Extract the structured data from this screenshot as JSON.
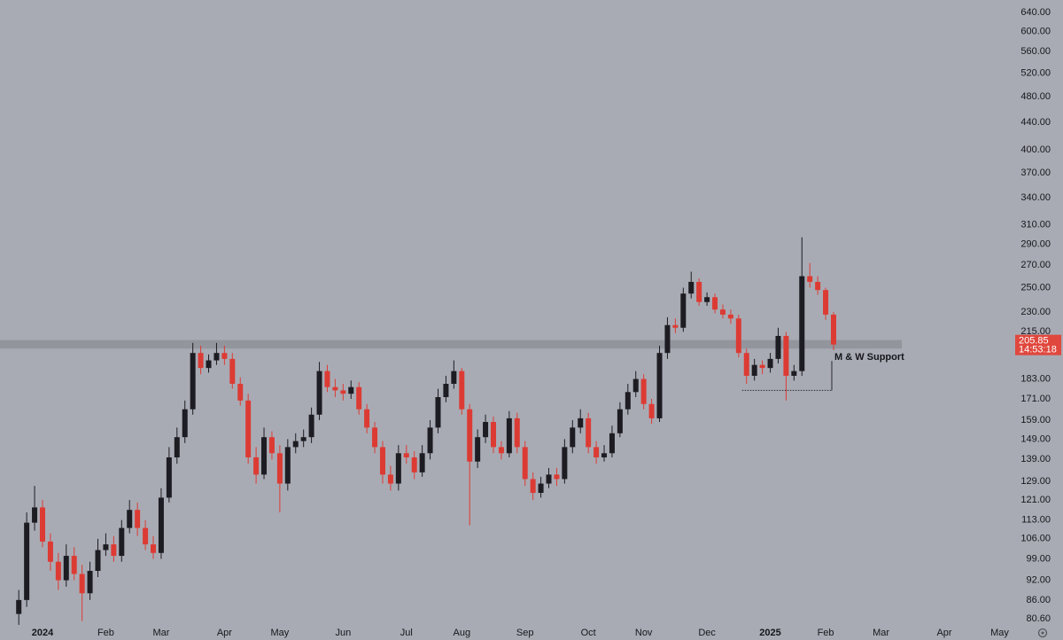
{
  "chart_data": {
    "type": "candlestick",
    "log_scale": true,
    "grid": false,
    "up_color": "#1c1c22",
    "down_color": "#dc3b34",
    "band_color": "#8f9199",
    "categories": [
      null,
      null,
      null,
      "2024",
      null,
      null,
      null,
      null,
      null,
      null,
      null,
      "Feb",
      null,
      null,
      null,
      null,
      null,
      null,
      "Mar",
      null,
      null,
      null,
      null,
      null,
      null,
      null,
      "Apr",
      null,
      null,
      null,
      null,
      null,
      null,
      "May",
      null,
      null,
      null,
      null,
      null,
      null,
      null,
      "Jun",
      null,
      null,
      null,
      null,
      null,
      null,
      null,
      "Jul",
      null,
      null,
      null,
      null,
      null,
      null,
      "Aug",
      null,
      null,
      null,
      null,
      null,
      null,
      null,
      "Sep",
      null,
      null,
      null,
      null,
      null,
      null,
      null,
      "Oct",
      null,
      null,
      null,
      null,
      null,
      null,
      "Nov",
      null,
      null,
      null,
      null,
      null,
      null,
      null,
      "Dec",
      null,
      null,
      null,
      null,
      null,
      null,
      null,
      "2025",
      null,
      null,
      null,
      null,
      null,
      null,
      "Feb",
      null,
      null,
      null,
      null,
      null,
      null,
      "Mar",
      null,
      null,
      null,
      null,
      null,
      null,
      null,
      "Apr",
      null,
      null,
      null,
      null,
      null,
      null,
      "May",
      null
    ],
    "open": [
      82,
      86,
      112,
      118,
      105,
      98,
      92,
      100,
      94,
      88,
      95,
      102,
      104,
      100,
      110,
      117,
      110,
      104,
      101,
      122,
      140,
      150,
      165,
      200,
      190,
      195,
      200,
      196,
      180,
      170,
      140,
      132,
      150,
      142,
      128,
      145,
      148,
      150,
      162,
      188,
      178,
      176,
      174,
      178,
      165,
      155,
      145,
      132,
      128,
      142,
      140,
      133,
      142,
      155,
      172,
      180,
      188,
      165,
      138,
      150,
      158,
      145,
      142,
      160,
      145,
      130,
      124,
      128,
      132,
      130,
      145,
      155,
      160,
      145,
      140,
      142,
      152,
      165,
      175,
      183,
      168,
      160,
      200,
      220,
      218,
      245,
      255,
      238,
      242,
      232,
      228,
      225,
      200,
      185,
      192,
      190,
      196,
      212,
      185,
      188,
      260,
      255,
      248,
      228,
      null,
      null,
      null,
      null,
      null,
      null,
      null,
      null,
      null,
      null,
      null,
      null,
      null,
      null,
      null,
      null,
      null,
      null,
      null,
      null,
      null,
      null
    ],
    "high": [
      89,
      116,
      127,
      121,
      108,
      101,
      104,
      103,
      97,
      98,
      106,
      108,
      107,
      113,
      121,
      120,
      113,
      107,
      126,
      145,
      155,
      170,
      207,
      205,
      199,
      207,
      205,
      200,
      184,
      174,
      145,
      155,
      153,
      146,
      149,
      152,
      154,
      166,
      194,
      192,
      183,
      180,
      182,
      181,
      168,
      158,
      148,
      136,
      146,
      146,
      143,
      146,
      159,
      177,
      185,
      195,
      190,
      168,
      154,
      162,
      161,
      148,
      164,
      163,
      148,
      133,
      131,
      135,
      135,
      149,
      159,
      165,
      163,
      148,
      146,
      156,
      169,
      180,
      188,
      186,
      171,
      205,
      226,
      225,
      250,
      264,
      258,
      246,
      245,
      236,
      232,
      228,
      203,
      196,
      195,
      200,
      218,
      215,
      192,
      297,
      272,
      260,
      250,
      230,
      null,
      null,
      null,
      null,
      null,
      null,
      null,
      null,
      null,
      null,
      null,
      null,
      null,
      null,
      null,
      null,
      null,
      null,
      null,
      null,
      null,
      null
    ],
    "low": [
      79,
      84,
      109,
      103,
      95,
      89,
      90,
      92,
      80,
      86,
      93,
      100,
      98,
      98,
      108,
      107,
      102,
      99,
      99,
      120,
      137,
      147,
      162,
      186,
      187,
      192,
      192,
      177,
      167,
      137,
      128,
      130,
      139,
      116,
      125,
      142,
      145,
      147,
      159,
      175,
      172,
      170,
      171,
      162,
      152,
      142,
      128,
      125,
      125,
      137,
      130,
      131,
      139,
      152,
      169,
      177,
      162,
      111,
      135,
      147,
      142,
      139,
      140,
      142,
      127,
      121,
      122,
      126,
      127,
      128,
      142,
      152,
      142,
      137,
      138,
      140,
      150,
      162,
      172,
      165,
      157,
      158,
      196,
      214,
      215,
      241,
      235,
      235,
      229,
      225,
      221,
      197,
      180,
      182,
      186,
      187,
      193,
      170,
      182,
      185,
      250,
      244,
      224,
      202,
      null,
      null,
      null,
      null,
      null,
      null,
      null,
      null,
      null,
      null,
      null,
      null,
      null,
      null,
      null,
      null,
      null,
      null,
      null,
      null,
      null,
      null
    ],
    "close": [
      86,
      112,
      118,
      105,
      98,
      92,
      100,
      94,
      88,
      95,
      102,
      104,
      100,
      110,
      117,
      110,
      104,
      101,
      122,
      140,
      150,
      165,
      200,
      190,
      195,
      200,
      196,
      180,
      170,
      140,
      132,
      150,
      142,
      128,
      145,
      148,
      150,
      162,
      188,
      178,
      176,
      174,
      178,
      165,
      155,
      145,
      132,
      128,
      142,
      140,
      133,
      142,
      155,
      172,
      180,
      188,
      165,
      138,
      150,
      158,
      145,
      142,
      160,
      145,
      130,
      124,
      128,
      132,
      130,
      145,
      155,
      160,
      145,
      140,
      142,
      152,
      165,
      175,
      183,
      168,
      160,
      200,
      220,
      218,
      245,
      255,
      238,
      242,
      232,
      228,
      225,
      200,
      185,
      192,
      190,
      196,
      212,
      185,
      188,
      260,
      255,
      248,
      228,
      205.85,
      null,
      null,
      null,
      null,
      null,
      null,
      null,
      null,
      null,
      null,
      null,
      null,
      null,
      null,
      null,
      null,
      null,
      null,
      null,
      null,
      null,
      null
    ],
    "ylim": [
      78.5,
      668
    ],
    "yticks": [
      {
        "value": 80.6,
        "label": "80.60"
      },
      {
        "value": 86,
        "label": "86.00"
      },
      {
        "value": 92,
        "label": "92.00"
      },
      {
        "value": 99,
        "label": "99.00"
      },
      {
        "value": 106,
        "label": "106.00"
      },
      {
        "value": 113,
        "label": "113.00"
      },
      {
        "value": 121,
        "label": "121.00"
      },
      {
        "value": 129,
        "label": "129.00"
      },
      {
        "value": 139,
        "label": "139.00"
      },
      {
        "value": 149,
        "label": "149.00"
      },
      {
        "value": 159,
        "label": "159.00"
      },
      {
        "value": 171,
        "label": "171.00"
      },
      {
        "value": 183,
        "label": "183.00"
      },
      {
        "value": 215,
        "label": "215.00"
      },
      {
        "value": 230,
        "label": "230.00"
      },
      {
        "value": 250,
        "label": "250.00"
      },
      {
        "value": 270,
        "label": "270.00"
      },
      {
        "value": 290,
        "label": "290.00"
      },
      {
        "value": 310,
        "label": "310.00"
      },
      {
        "value": 340,
        "label": "340.00"
      },
      {
        "value": 370,
        "label": "370.00"
      },
      {
        "value": 400,
        "label": "400.00"
      },
      {
        "value": 440,
        "label": "440.00"
      },
      {
        "value": 480,
        "label": "480.00"
      },
      {
        "value": 520,
        "label": "520.00"
      },
      {
        "value": 560,
        "label": "560.00"
      },
      {
        "value": 600,
        "label": "600.00"
      },
      {
        "value": 640,
        "label": "640.00"
      }
    ],
    "support_band": [
      203,
      209
    ],
    "support_label": "M & W Support",
    "range_low": 176,
    "countdown": "14:53:18"
  }
}
